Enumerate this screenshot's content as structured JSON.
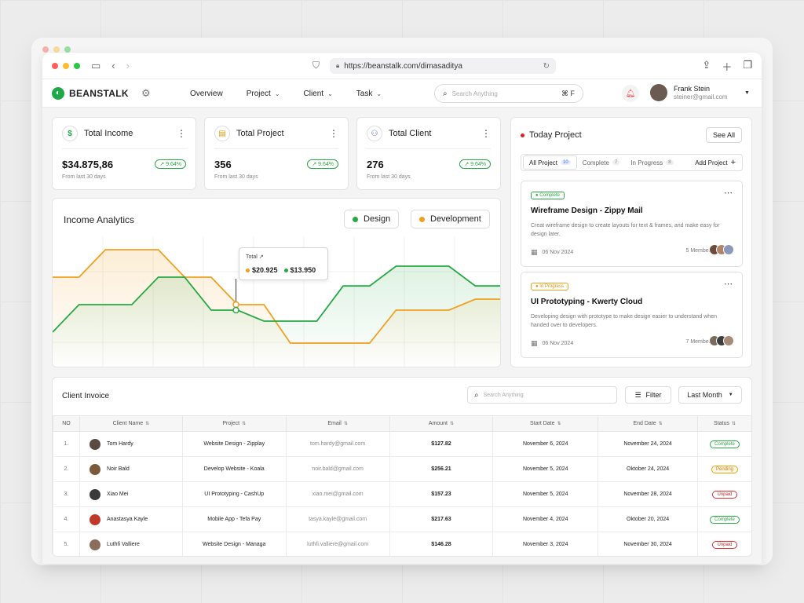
{
  "browser": {
    "url": "https://beanstalk.com/dimasaditya"
  },
  "nav": {
    "brand": "BEANSTALK",
    "menu": [
      {
        "label": "Overview",
        "has_dropdown": false
      },
      {
        "label": "Project",
        "has_dropdown": true
      },
      {
        "label": "Client",
        "has_dropdown": true
      },
      {
        "label": "Task",
        "has_dropdown": true
      }
    ],
    "search_placeholder": "Search Anything",
    "search_shortcut": "⌘ F",
    "user": {
      "name": "Frank Stein",
      "email": "steiner@gmail.com"
    }
  },
  "stats": [
    {
      "title": "Total Income",
      "icon": "dollar-icon",
      "value": "$34.875,86",
      "change": "9.64%",
      "sub": "From last 30 days"
    },
    {
      "title": "Total Project",
      "icon": "clipboard-icon",
      "value": "356",
      "change": "9.64%",
      "sub": "From last 30 days"
    },
    {
      "title": "Total Client",
      "icon": "user-icon",
      "value": "276",
      "change": "9.64%",
      "sub": "From last 30 days"
    }
  ],
  "analytics": {
    "title": "Income Analytics",
    "legend": [
      {
        "name": "Design",
        "color": "#27a844"
      },
      {
        "name": "Development",
        "color": "#f0a020"
      }
    ],
    "tooltip": {
      "title": "Total",
      "development": "$20.925",
      "design": "$13.950"
    }
  },
  "chart_data": {
    "type": "line",
    "x": [
      0,
      1,
      2,
      3,
      4,
      5,
      6,
      7,
      8,
      9,
      10,
      11,
      12,
      13,
      14,
      15,
      16,
      17
    ],
    "series": [
      {
        "name": "Development",
        "color": "#f0a020",
        "values": [
          70,
          70,
          95,
          95,
          95,
          70,
          70,
          45,
          45,
          10,
          10,
          10,
          10,
          40,
          40,
          40,
          50,
          50
        ]
      },
      {
        "name": "Design",
        "color": "#27a844",
        "values": [
          20,
          45,
          45,
          45,
          70,
          70,
          40,
          40,
          30,
          30,
          30,
          62,
          62,
          80,
          80,
          80,
          62,
          62
        ]
      }
    ],
    "grid": true
  },
  "today": {
    "title": "Today Project",
    "see_all": "See All",
    "tabs": [
      {
        "label": "All Project",
        "count": "10",
        "active": true
      },
      {
        "label": "Complete",
        "count": "7",
        "active": false
      },
      {
        "label": "In Progress",
        "count": "8",
        "active": false
      }
    ],
    "add_label": "Add Project",
    "projects": [
      {
        "status": "Complete",
        "title": "Wireframe Design - Zippy Mail",
        "desc": "Creat wireframe design to create layouts for text & frames, and make easy for design later.",
        "date": "06 Nov 2024",
        "members": "5 Member"
      },
      {
        "status": "In Progress",
        "title": "UI Prototyping - Kwerty Cloud",
        "desc": "Developing design with prototype to make design easier to understand when handed over to developers.",
        "date": "06 Nov 2024",
        "members": "7 Member"
      }
    ]
  },
  "invoice": {
    "title": "Client Invoice",
    "search_placeholder": "Search Anything",
    "filter_label": "Filter",
    "period_label": "Last Month",
    "columns": [
      "NO",
      "Client Name",
      "Project",
      "Email",
      "Amount",
      "Start Date",
      "End Date",
      "Status"
    ],
    "rows": [
      {
        "no": "1.",
        "name": "Tom Hardy",
        "project": "Website Design - Zipplay",
        "email": "tom.hardy@gmail.com",
        "amount": "$127.82",
        "start": "November 6, 2024",
        "end": "November 24, 2024",
        "status": "Complete",
        "avatar_color": "#5b4a42"
      },
      {
        "no": "2.",
        "name": "Noir Bald",
        "project": "Develop Website - Koala",
        "email": "noir.bald@gmail.com",
        "amount": "$256.21",
        "start": "November 5, 2024",
        "end": "Oktober 24, 2024",
        "status": "Pending",
        "avatar_color": "#7a5a3a"
      },
      {
        "no": "3.",
        "name": "Xiao Mei",
        "project": "UI Prototyping - CashUp",
        "email": "xiao.mei@gmail.com",
        "amount": "$157.23",
        "start": "November 5, 2024",
        "end": "November 28, 2024",
        "status": "Unpaid",
        "avatar_color": "#3a3a3a"
      },
      {
        "no": "4.",
        "name": "Anastasya Kayle",
        "project": "Mobile App - Tefa Pay",
        "email": "tasya.kayle@gmail.com",
        "amount": "$217.63",
        "start": "November 4, 2024",
        "end": "Oktober 20, 2024",
        "status": "Complete",
        "avatar_color": "#c0392b"
      },
      {
        "no": "5.",
        "name": "Luthfi Valliere",
        "project": "Website Design - Managa",
        "email": "luthfi.valliere@gmail.com",
        "amount": "$146.28",
        "start": "November 3, 2024",
        "end": "November 30, 2024",
        "status": "Unpaid",
        "avatar_color": "#8a6d5a"
      }
    ]
  }
}
